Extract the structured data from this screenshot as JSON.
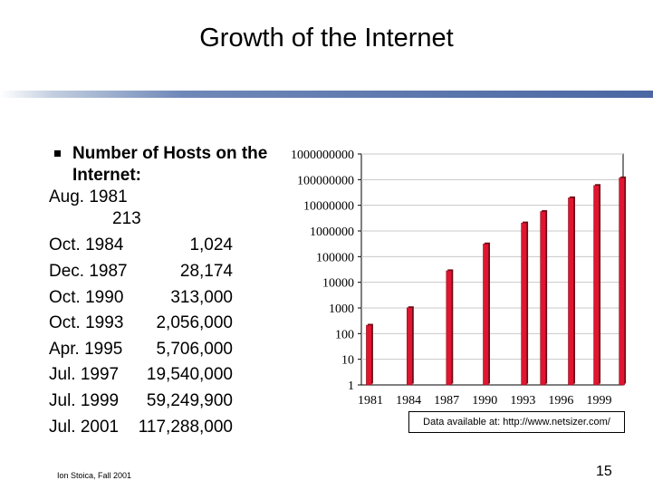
{
  "page": {
    "title": "Growth of the Internet",
    "footer_left": "Ion Stoica, Fall 2001",
    "page_number": "15",
    "source_note": "Data available at: http://www.netsizer.com/"
  },
  "hosts_list": {
    "heading": "Number of Hosts on the Internet:",
    "rows": [
      {
        "date": "Aug. 1981",
        "value": "213"
      },
      {
        "date": "Oct. 1984",
        "value": "1,024"
      },
      {
        "date": "Dec. 1987",
        "value": "28,174"
      },
      {
        "date": "Oct. 1990",
        "value": "313,000"
      },
      {
        "date": "Oct. 1993",
        "value": "2,056,000"
      },
      {
        "date": "Apr. 1995",
        "value": "5,706,000"
      },
      {
        "date": "Jul. 1997",
        "value": "19,540,000"
      },
      {
        "date": "Jul. 1999",
        "value": "59,249,900"
      },
      {
        "date": "Jul. 2001",
        "value": "117,288,000"
      }
    ]
  },
  "chart_data": {
    "type": "bar",
    "title": "",
    "xlabel": "",
    "ylabel": "",
    "y_scale": "log",
    "ylim": [
      1,
      1000000000
    ],
    "y_ticks": [
      "1",
      "10",
      "100",
      "1000",
      "10000",
      "100000",
      "1000000",
      "10000000",
      "100000000",
      "1000000000"
    ],
    "x_ticks": [
      "1981",
      "1984",
      "1987",
      "1990",
      "1993",
      "1996",
      "1999"
    ],
    "xlim": [
      1981,
      2001.6
    ],
    "bar_color": "#e0152f",
    "grid": "horizontal",
    "points": [
      {
        "x": 1981.6,
        "y": 213
      },
      {
        "x": 1984.8,
        "y": 1024
      },
      {
        "x": 1987.9,
        "y": 28174
      },
      {
        "x": 1990.8,
        "y": 313000
      },
      {
        "x": 1993.8,
        "y": 2056000
      },
      {
        "x": 1995.3,
        "y": 5706000
      },
      {
        "x": 1997.5,
        "y": 19540000
      },
      {
        "x": 1999.5,
        "y": 59249900
      },
      {
        "x": 2001.5,
        "y": 117288000
      }
    ]
  }
}
